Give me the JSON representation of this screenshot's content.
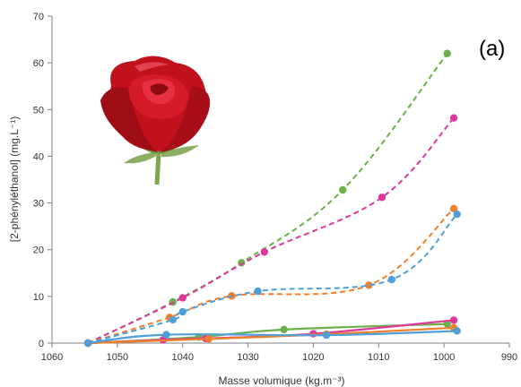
{
  "chart_data": {
    "type": "line",
    "panel_label": "(a)",
    "xlabel": "Masse volumique (kg.m⁻³)",
    "ylabel": "[2-phényléthanol] (mg.L⁻¹)",
    "xlim": [
      1060,
      990
    ],
    "ylim": [
      0,
      70
    ],
    "x_ticks": [
      1060,
      1050,
      1040,
      1030,
      1020,
      1010,
      1000,
      990
    ],
    "y_ticks": [
      0,
      10,
      20,
      30,
      40,
      50,
      60,
      70
    ],
    "grid": false,
    "legend": "none",
    "image": "rose-flower",
    "series": [
      {
        "color": "#6bb04a",
        "style": "dashed",
        "points": [
          [
            1054.5,
            0
          ],
          [
            1041.5,
            8.8
          ],
          [
            1031,
            17.2
          ],
          [
            1015.5,
            32.8
          ],
          [
            999.5,
            62
          ]
        ]
      },
      {
        "color": "#e0389a",
        "style": "dashed",
        "points": [
          [
            1054.5,
            0
          ],
          [
            1040,
            9.7
          ],
          [
            1027.5,
            19.5
          ],
          [
            1009.5,
            31.2
          ],
          [
            998.5,
            48.2
          ]
        ]
      },
      {
        "color": "#f07f2a",
        "style": "dashed",
        "points": [
          [
            1054.5,
            0
          ],
          [
            1042,
            5.5
          ],
          [
            1032.5,
            10.1
          ],
          [
            1011.5,
            12.4
          ],
          [
            998.5,
            28.8
          ]
        ]
      },
      {
        "color": "#4f9fd8",
        "style": "dashed",
        "points": [
          [
            1054.5,
            0
          ],
          [
            1041.5,
            5.0
          ],
          [
            1040,
            6.7
          ],
          [
            1028.5,
            11.1
          ],
          [
            1008,
            13.6
          ],
          [
            998,
            27.6
          ]
        ]
      },
      {
        "color": "#6bb04a",
        "style": "solid",
        "points": [
          [
            1054.5,
            0
          ],
          [
            1037.5,
            1.3
          ],
          [
            1024.5,
            2.9
          ],
          [
            999.5,
            4.1
          ]
        ]
      },
      {
        "color": "#e0389a",
        "style": "solid",
        "points": [
          [
            1054.5,
            0
          ],
          [
            1043,
            0.7
          ],
          [
            1036.5,
            1.0
          ],
          [
            1020,
            2.0
          ],
          [
            998.5,
            4.9
          ]
        ]
      },
      {
        "color": "#f07f2a",
        "style": "solid",
        "points": [
          [
            1054.5,
            0
          ],
          [
            1036,
            0.9
          ],
          [
            1018,
            1.9
          ],
          [
            998.5,
            3.3
          ]
        ]
      },
      {
        "color": "#4f9fd8",
        "style": "solid",
        "points": [
          [
            1054.5,
            0
          ],
          [
            1042.5,
            1.8
          ],
          [
            1018,
            1.7
          ],
          [
            998,
            2.6
          ]
        ]
      }
    ]
  }
}
